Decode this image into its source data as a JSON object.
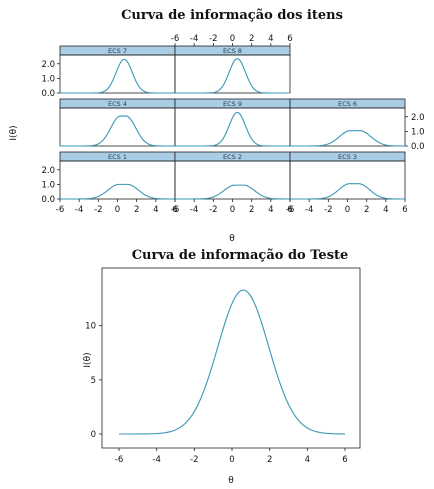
{
  "chart_data": [
    {
      "type": "line",
      "title": "Curva de informação dos itens",
      "xlabel": "θ",
      "ylabel": "I(θ)",
      "xlim": [
        -6,
        6
      ],
      "ylim": [
        0,
        2.6
      ],
      "x_ticks": [
        "-6",
        "-4",
        "-2",
        "0",
        "2",
        "4",
        "6"
      ],
      "y_ticks": [
        "0.0",
        "1.0",
        "2.0"
      ],
      "panels": [
        {
          "name": "ECS 7",
          "peak": 2.3,
          "center": 0.7,
          "width": 0.85,
          "flat": 0.0
        },
        {
          "name": "ECS 8",
          "peak": 2.35,
          "center": 0.5,
          "width": 0.85,
          "flat": 0.0
        },
        {
          "name": "ECS 4",
          "peak": 2.05,
          "center": 0.6,
          "width": 1.0,
          "flat": 0.6
        },
        {
          "name": "ECS 9",
          "peak": 2.3,
          "center": 0.5,
          "width": 0.85,
          "flat": 0.0
        },
        {
          "name": "ECS 6",
          "peak": 1.05,
          "center": 0.8,
          "width": 1.15,
          "flat": 1.0
        },
        {
          "name": "ECS 1",
          "peak": 1.0,
          "center": 0.6,
          "width": 1.15,
          "flat": 0.9
        },
        {
          "name": "ECS 2",
          "peak": 0.95,
          "center": 0.7,
          "width": 1.15,
          "flat": 0.9
        },
        {
          "name": "ECS 3",
          "peak": 1.05,
          "center": 0.7,
          "width": 1.15,
          "flat": 0.9
        }
      ]
    },
    {
      "type": "line",
      "title": "Curva de informação do Teste",
      "xlabel": "θ",
      "ylabel": "I(θ)",
      "xlim": [
        -6,
        6
      ],
      "ylim": [
        0,
        13.5
      ],
      "x_ticks": [
        "-6",
        "-4",
        "-2",
        "0",
        "2",
        "4",
        "6"
      ],
      "y_ticks": [
        "0",
        "5",
        "10"
      ],
      "peak": 13.3,
      "center": 0.6,
      "width": 1.35
    }
  ]
}
